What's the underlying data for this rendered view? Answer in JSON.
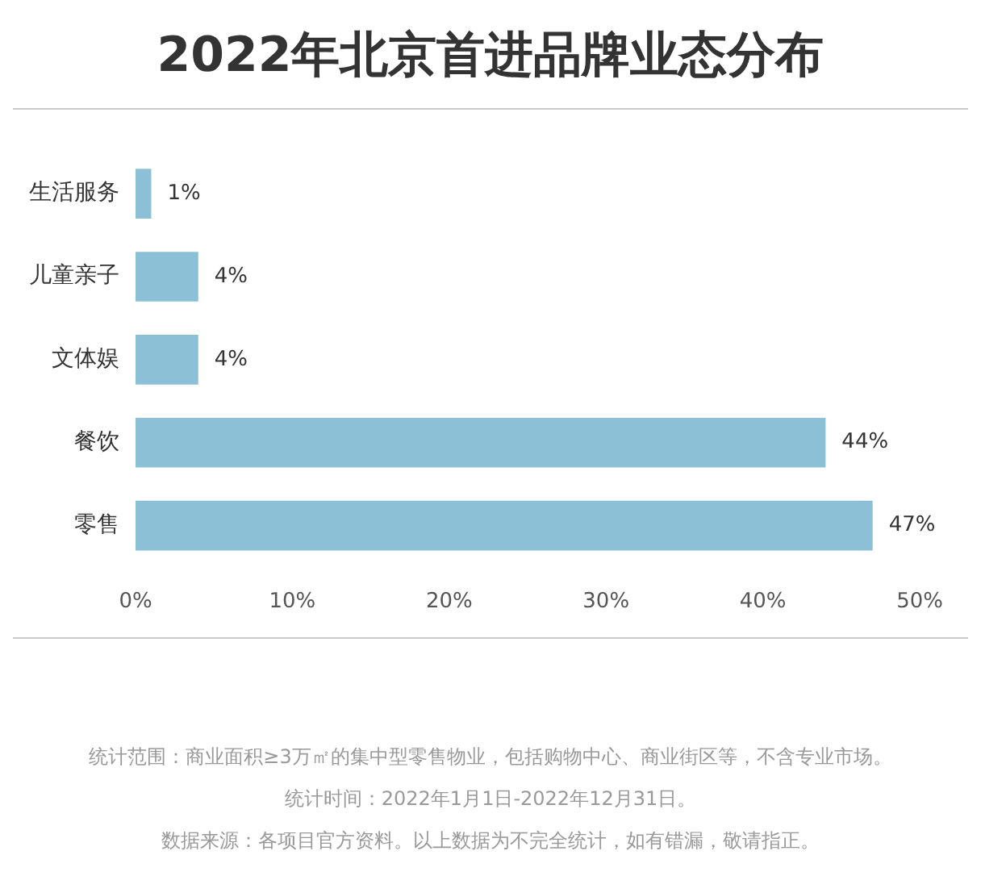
{
  "chart_data": {
    "type": "bar",
    "orientation": "horizontal",
    "title": "2022年北京首进品牌业态分布",
    "categories": [
      "生活服务",
      "儿童亲子",
      "文体娱",
      "餐饮",
      "零售"
    ],
    "values": [
      1,
      4,
      4,
      44,
      47
    ],
    "value_labels": [
      "1%",
      "4%",
      "4%",
      "44%",
      "47%"
    ],
    "color": "#8cc0d6",
    "xlim": [
      0,
      50
    ],
    "xticks": [
      {
        "value": 0,
        "label": "0%"
      },
      {
        "value": 10,
        "label": "10%"
      },
      {
        "value": 20,
        "label": "20%"
      },
      {
        "value": 30,
        "label": "30%"
      },
      {
        "value": 40,
        "label": "40%"
      },
      {
        "value": 50,
        "label": "50%"
      }
    ],
    "grid": false,
    "legend": false,
    "annotations": [
      "统计范围：商业面积≥3万㎡的集中型零售物业，包括购物中心、商业街区等，不含专业市场。",
      "统计时间：2022年1月1日-2022年12月31日。",
      "数据来源：各项目官方资料。以上数据为不完全统计，如有错漏，敬请指正。"
    ]
  }
}
